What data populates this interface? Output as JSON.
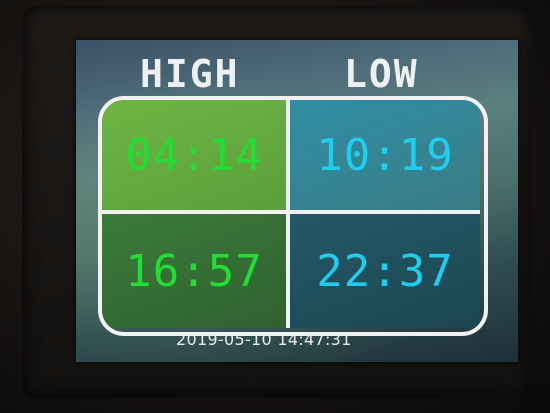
{
  "table": {
    "headings": {
      "high": "HIGH",
      "low": "LOW"
    },
    "rows": [
      {
        "high": "04:14",
        "low": "10:19"
      },
      {
        "high": "16:57",
        "low": "22:37"
      }
    ]
  },
  "status": {
    "timestamp": "2019-05-10 14:47:31"
  },
  "colors": {
    "high_text": "#22dd33",
    "low_text": "#22ccee",
    "border": "#f1f1f1",
    "heading_text": "#eef1f2"
  }
}
